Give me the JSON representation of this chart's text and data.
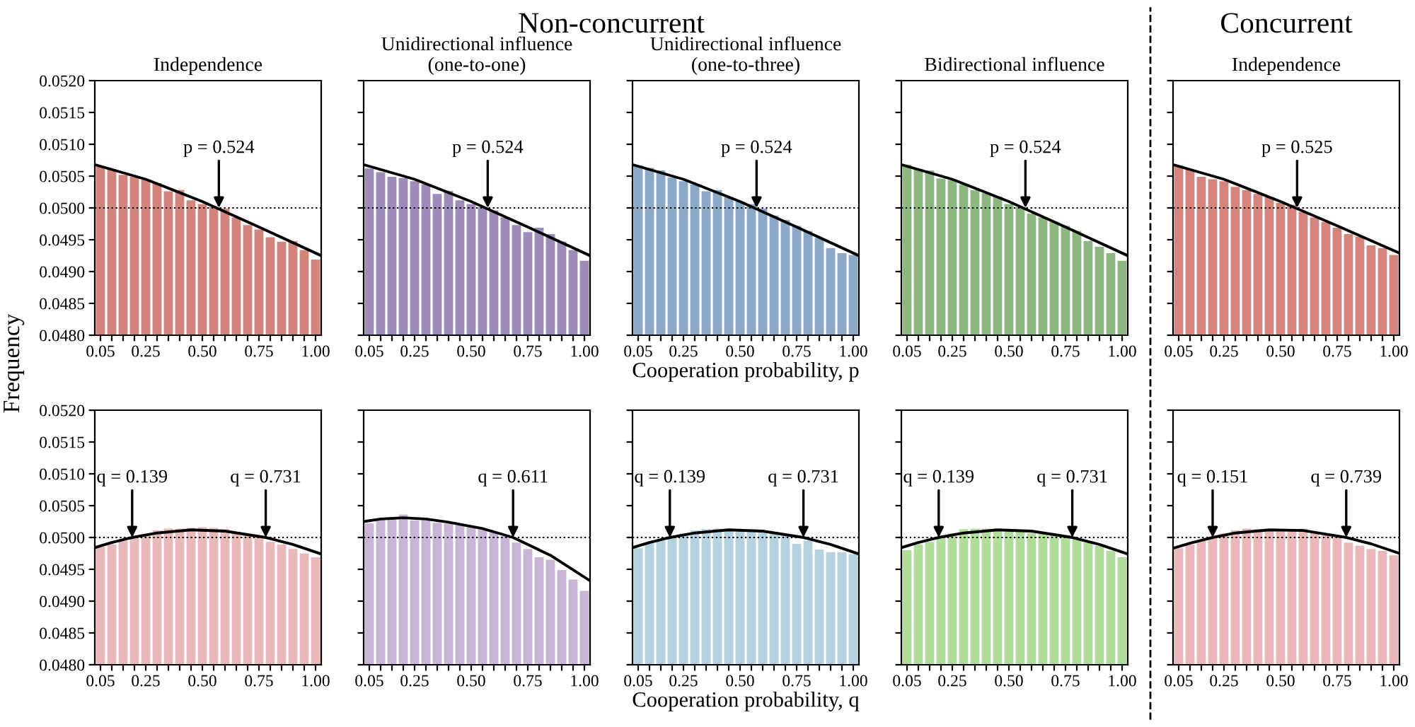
{
  "chart_data": [
    {
      "type": "bar",
      "title": "Independence",
      "ylabel": "Frequency",
      "annotations": [
        "Non-concurrent",
        {
          "text": "p = 0.524",
          "x": 0.573,
          "y": 0.05
        }
      ],
      "x": [
        0.05,
        0.1,
        0.15,
        0.2,
        0.25,
        0.3,
        0.35,
        0.4,
        0.45,
        0.5,
        0.55,
        0.6,
        0.65,
        0.7,
        0.75,
        0.8,
        0.85,
        0.9,
        0.95,
        1.0
      ],
      "series": [
        {
          "color": "#d2857c",
          "values": [
            0.05065,
            0.05061,
            0.05052,
            0.05049,
            0.05045,
            0.05039,
            0.05026,
            0.05028,
            0.05012,
            0.05006,
            0.05001,
            0.04999,
            0.04985,
            0.04973,
            0.04966,
            0.04954,
            0.04947,
            0.04948,
            0.04934,
            0.04919
          ]
        },
        {
          "type": "line",
          "color": "#000000",
          "x": [
            0.025,
            0.25,
            0.5,
            0.75,
            1.025
          ],
          "values": [
            0.05068,
            0.05045,
            0.0501,
            0.0497,
            0.04925
          ]
        }
      ],
      "xlim": [
        0.025,
        1.025
      ],
      "ylim": [
        0.048,
        0.052
      ],
      "xticks": [
        {
          "value": 0.05,
          "label": "0.05"
        },
        {
          "value": 0.1,
          "label": null
        },
        {
          "value": 0.15,
          "label": null
        },
        {
          "value": 0.2,
          "label": null
        },
        {
          "value": 0.25,
          "label": "0.25"
        },
        {
          "value": 0.3,
          "label": null
        },
        {
          "value": 0.35,
          "label": null
        },
        {
          "value": 0.4,
          "label": null
        },
        {
          "value": 0.45,
          "label": null
        },
        {
          "value": 0.5,
          "label": "0.50"
        },
        {
          "value": 0.55,
          "label": null
        },
        {
          "value": 0.6,
          "label": null
        },
        {
          "value": 0.65,
          "label": null
        },
        {
          "value": 0.7,
          "label": null
        },
        {
          "value": 0.75,
          "label": "0.75"
        },
        {
          "value": 0.8,
          "label": null
        },
        {
          "value": 0.85,
          "label": null
        },
        {
          "value": 0.9,
          "label": null
        },
        {
          "value": 0.95,
          "label": null
        },
        {
          "value": 1.0,
          "label": "1.00"
        }
      ],
      "yticks": [
        {
          "value": 0.048,
          "label": "0.0480"
        },
        {
          "value": 0.0485,
          "label": "0.0485"
        },
        {
          "value": 0.049,
          "label": "0.0490"
        },
        {
          "value": 0.0495,
          "label": "0.0495"
        },
        {
          "value": 0.05,
          "label": "0.0500"
        },
        {
          "value": 0.0505,
          "label": "0.0505"
        },
        {
          "value": 0.051,
          "label": "0.0510"
        },
        {
          "value": 0.0515,
          "label": "0.0515"
        },
        {
          "value": 0.052,
          "label": "0.0520"
        }
      ],
      "ref_lines": [
        {
          "axis": "y",
          "value": 0.05,
          "color": "#000000",
          "line_style": "dotted"
        }
      ],
      "grid": false
    },
    {
      "type": "bar",
      "title": "Unidirectional influence\n(one-to-one)",
      "annotations": [
        {
          "text": "p = 0.524",
          "x": 0.573,
          "y": 0.05
        }
      ],
      "x": [
        0.05,
        0.1,
        0.15,
        0.2,
        0.25,
        0.3,
        0.35,
        0.4,
        0.45,
        0.5,
        0.55,
        0.6,
        0.65,
        0.7,
        0.75,
        0.8,
        0.85,
        0.9,
        0.95,
        1.0
      ],
      "series": [
        {
          "color": "#9d8cba",
          "values": [
            0.05062,
            0.05056,
            0.05049,
            0.05047,
            0.05042,
            0.05037,
            0.05022,
            0.05027,
            0.05012,
            0.05006,
            0.05001,
            0.04996,
            0.04985,
            0.04973,
            0.04962,
            0.04969,
            0.04959,
            0.04947,
            0.04934,
            0.04917
          ]
        },
        {
          "type": "line",
          "color": "#000000",
          "x": [
            0.025,
            0.25,
            0.5,
            0.75,
            1.025
          ],
          "values": [
            0.05068,
            0.05045,
            0.0501,
            0.0497,
            0.04925
          ]
        }
      ],
      "xlim": [
        0.025,
        1.025
      ],
      "ylim": [
        0.048,
        0.052
      ],
      "xticks": [
        {
          "value": 0.05,
          "label": "0.05"
        },
        {
          "value": 0.1,
          "label": null
        },
        {
          "value": 0.15,
          "label": null
        },
        {
          "value": 0.2,
          "label": null
        },
        {
          "value": 0.25,
          "label": "0.25"
        },
        {
          "value": 0.3,
          "label": null
        },
        {
          "value": 0.35,
          "label": null
        },
        {
          "value": 0.4,
          "label": null
        },
        {
          "value": 0.45,
          "label": null
        },
        {
          "value": 0.5,
          "label": "0.50"
        },
        {
          "value": 0.55,
          "label": null
        },
        {
          "value": 0.6,
          "label": null
        },
        {
          "value": 0.65,
          "label": null
        },
        {
          "value": 0.7,
          "label": null
        },
        {
          "value": 0.75,
          "label": "0.75"
        },
        {
          "value": 0.8,
          "label": null
        },
        {
          "value": 0.85,
          "label": null
        },
        {
          "value": 0.9,
          "label": null
        },
        {
          "value": 0.95,
          "label": null
        },
        {
          "value": 1.0,
          "label": "1.00"
        }
      ],
      "yticks": [
        0.048,
        0.0485,
        0.049,
        0.0495,
        0.05,
        0.0505,
        0.051,
        0.0515,
        0.052
      ],
      "ref_lines": [
        {
          "axis": "y",
          "value": 0.05,
          "color": "#000000",
          "line_style": "dotted"
        }
      ],
      "grid": false,
      "tick_labels": "x"
    },
    {
      "type": "bar",
      "title": "Unidirectional influence\n(one-to-three)",
      "xlabel": "Cooperation probability, p",
      "annotations": [
        {
          "text": "p = 0.524",
          "x": 0.573,
          "y": 0.05
        }
      ],
      "x": [
        0.05,
        0.1,
        0.15,
        0.2,
        0.25,
        0.3,
        0.35,
        0.4,
        0.45,
        0.5,
        0.55,
        0.6,
        0.65,
        0.7,
        0.75,
        0.8,
        0.85,
        0.9,
        0.95,
        1.0
      ],
      "series": [
        {
          "color": "#8aa9c6",
          "values": [
            0.05067,
            0.05063,
            0.05059,
            0.05048,
            0.05042,
            0.05037,
            0.05026,
            0.05028,
            0.05017,
            0.0501,
            0.05006,
            0.04999,
            0.04988,
            0.04981,
            0.04972,
            0.04964,
            0.04953,
            0.04937,
            0.04929,
            0.04926
          ]
        },
        {
          "type": "line",
          "color": "#000000",
          "x": [
            0.025,
            0.25,
            0.5,
            0.75,
            1.025
          ],
          "values": [
            0.05068,
            0.05045,
            0.0501,
            0.0497,
            0.04925
          ]
        }
      ],
      "xlim": [
        0.025,
        1.025
      ],
      "ylim": [
        0.048,
        0.052
      ],
      "xticks": [
        {
          "value": 0.05,
          "label": "0.05"
        },
        {
          "value": 0.1,
          "label": null
        },
        {
          "value": 0.15,
          "label": null
        },
        {
          "value": 0.2,
          "label": null
        },
        {
          "value": 0.25,
          "label": "0.25"
        },
        {
          "value": 0.3,
          "label": null
        },
        {
          "value": 0.35,
          "label": null
        },
        {
          "value": 0.4,
          "label": null
        },
        {
          "value": 0.45,
          "label": null
        },
        {
          "value": 0.5,
          "label": "0.50"
        },
        {
          "value": 0.55,
          "label": null
        },
        {
          "value": 0.6,
          "label": null
        },
        {
          "value": 0.65,
          "label": null
        },
        {
          "value": 0.7,
          "label": null
        },
        {
          "value": 0.75,
          "label": "0.75"
        },
        {
          "value": 0.8,
          "label": null
        },
        {
          "value": 0.85,
          "label": null
        },
        {
          "value": 0.9,
          "label": null
        },
        {
          "value": 0.95,
          "label": null
        },
        {
          "value": 1.0,
          "label": "1.00"
        }
      ],
      "yticks": [
        0.048,
        0.0485,
        0.049,
        0.0495,
        0.05,
        0.0505,
        0.051,
        0.0515,
        0.052
      ],
      "ref_lines": [
        {
          "axis": "y",
          "value": 0.05,
          "color": "#000000",
          "line_style": "dotted"
        }
      ],
      "grid": false,
      "tick_labels": "x"
    },
    {
      "type": "bar",
      "title": "Bidirectional influence",
      "annotations": [
        {
          "text": "p = 0.524",
          "x": 0.573,
          "y": 0.05
        }
      ],
      "x": [
        0.05,
        0.1,
        0.15,
        0.2,
        0.25,
        0.3,
        0.35,
        0.4,
        0.45,
        0.5,
        0.55,
        0.6,
        0.65,
        0.7,
        0.75,
        0.8,
        0.85,
        0.9,
        0.95,
        1.0
      ],
      "series": [
        {
          "color": "#8ab87e",
          "values": [
            0.05068,
            0.05061,
            0.05059,
            0.05046,
            0.05044,
            0.05037,
            0.05028,
            0.05023,
            0.05018,
            0.05006,
            0.05001,
            0.04991,
            0.04985,
            0.04978,
            0.04972,
            0.04964,
            0.04948,
            0.04939,
            0.04929,
            0.04917
          ]
        },
        {
          "type": "line",
          "color": "#000000",
          "x": [
            0.025,
            0.25,
            0.5,
            0.75,
            1.025
          ],
          "values": [
            0.05068,
            0.05045,
            0.0501,
            0.0497,
            0.04925
          ]
        }
      ],
      "xlim": [
        0.025,
        1.025
      ],
      "ylim": [
        0.048,
        0.052
      ],
      "xticks": [
        {
          "value": 0.05,
          "label": "0.05"
        },
        {
          "value": 0.1,
          "label": null
        },
        {
          "value": 0.15,
          "label": null
        },
        {
          "value": 0.2,
          "label": null
        },
        {
          "value": 0.25,
          "label": "0.25"
        },
        {
          "value": 0.3,
          "label": null
        },
        {
          "value": 0.35,
          "label": null
        },
        {
          "value": 0.4,
          "label": null
        },
        {
          "value": 0.45,
          "label": null
        },
        {
          "value": 0.5,
          "label": "0.50"
        },
        {
          "value": 0.55,
          "label": null
        },
        {
          "value": 0.6,
          "label": null
        },
        {
          "value": 0.65,
          "label": null
        },
        {
          "value": 0.7,
          "label": null
        },
        {
          "value": 0.75,
          "label": "0.75"
        },
        {
          "value": 0.8,
          "label": null
        },
        {
          "value": 0.85,
          "label": null
        },
        {
          "value": 0.9,
          "label": null
        },
        {
          "value": 0.95,
          "label": null
        },
        {
          "value": 1.0,
          "label": "1.00"
        }
      ],
      "yticks": [
        0.048,
        0.0485,
        0.049,
        0.0495,
        0.05,
        0.0505,
        0.051,
        0.0515,
        0.052
      ],
      "ref_lines": [
        {
          "axis": "y",
          "value": 0.05,
          "color": "#000000",
          "line_style": "dotted"
        }
      ],
      "grid": false,
      "tick_labels": "x"
    },
    {
      "type": "bar",
      "title": "Independence",
      "annotations": [
        "Concurrent",
        {
          "text": "p = 0.525",
          "x": 0.573,
          "y": 0.05
        }
      ],
      "x": [
        0.05,
        0.1,
        0.15,
        0.2,
        0.25,
        0.3,
        0.35,
        0.4,
        0.45,
        0.5,
        0.55,
        0.6,
        0.65,
        0.7,
        0.75,
        0.8,
        0.85,
        0.9,
        0.95,
        1.0
      ],
      "series": [
        {
          "color": "#d4857c",
          "values": [
            0.05067,
            0.0506,
            0.05049,
            0.05045,
            0.05042,
            0.05033,
            0.05028,
            0.05022,
            0.05017,
            0.05008,
            0.05005,
            0.04994,
            0.04985,
            0.04978,
            0.04969,
            0.04959,
            0.04955,
            0.04941,
            0.04937,
            0.04926
          ]
        },
        {
          "type": "line",
          "color": "#000000",
          "x": [
            0.025,
            0.25,
            0.5,
            0.75,
            1.025
          ],
          "values": [
            0.05068,
            0.05045,
            0.0501,
            0.04972,
            0.04929
          ]
        }
      ],
      "xlim": [
        0.025,
        1.025
      ],
      "ylim": [
        0.048,
        0.052
      ],
      "xticks": [
        {
          "value": 0.05,
          "label": "0.05"
        },
        {
          "value": 0.1,
          "label": null
        },
        {
          "value": 0.15,
          "label": null
        },
        {
          "value": 0.2,
          "label": null
        },
        {
          "value": 0.25,
          "label": "0.25"
        },
        {
          "value": 0.3,
          "label": null
        },
        {
          "value": 0.35,
          "label": null
        },
        {
          "value": 0.4,
          "label": null
        },
        {
          "value": 0.45,
          "label": null
        },
        {
          "value": 0.5,
          "label": "0.50"
        },
        {
          "value": 0.55,
          "label": null
        },
        {
          "value": 0.6,
          "label": null
        },
        {
          "value": 0.65,
          "label": null
        },
        {
          "value": 0.7,
          "label": null
        },
        {
          "value": 0.75,
          "label": "0.75"
        },
        {
          "value": 0.8,
          "label": null
        },
        {
          "value": 0.85,
          "label": null
        },
        {
          "value": 0.9,
          "label": null
        },
        {
          "value": 0.95,
          "label": null
        },
        {
          "value": 1.0,
          "label": "1.00"
        }
      ],
      "yticks": [
        0.048,
        0.0485,
        0.049,
        0.0495,
        0.05,
        0.0505,
        0.051,
        0.0515,
        0.052
      ],
      "ref_lines": [
        {
          "axis": "y",
          "value": 0.05,
          "color": "#000000",
          "line_style": "dotted"
        }
      ],
      "grid": false,
      "tick_labels": "x"
    },
    {
      "type": "bar",
      "annotations": [
        {
          "text": "q = 0.139",
          "x": 0.19,
          "y": 0.05
        },
        {
          "text": "q = 0.731",
          "x": 0.78,
          "y": 0.05
        }
      ],
      "x": [
        0.05,
        0.1,
        0.15,
        0.2,
        0.25,
        0.3,
        0.35,
        0.4,
        0.45,
        0.5,
        0.55,
        0.6,
        0.65,
        0.7,
        0.75,
        0.8,
        0.85,
        0.9,
        0.95,
        1.0
      ],
      "series": [
        {
          "color": "#e9b8b8",
          "values": [
            0.04985,
            0.04989,
            0.04995,
            0.04999,
            0.05004,
            0.05011,
            0.05014,
            0.05014,
            0.05015,
            0.05016,
            0.05015,
            0.05013,
            0.05009,
            0.05004,
            0.05,
            0.04993,
            0.04989,
            0.04982,
            0.04975,
            0.04969
          ]
        },
        {
          "type": "line",
          "color": "#000000",
          "x": [
            0.025,
            0.1,
            0.19,
            0.3,
            0.45,
            0.6,
            0.78,
            0.9,
            1.025
          ],
          "values": [
            0.04984,
            0.04992,
            0.05,
            0.05007,
            0.05012,
            0.0501,
            0.05,
            0.04989,
            0.04974
          ]
        }
      ],
      "xlim": [
        0.025,
        1.025
      ],
      "ylim": [
        0.048,
        0.052
      ],
      "xticks": [
        {
          "value": 0.05,
          "label": "0.05"
        },
        {
          "value": 0.1,
          "label": null
        },
        {
          "value": 0.15,
          "label": null
        },
        {
          "value": 0.2,
          "label": null
        },
        {
          "value": 0.25,
          "label": "0.25"
        },
        {
          "value": 0.3,
          "label": null
        },
        {
          "value": 0.35,
          "label": null
        },
        {
          "value": 0.4,
          "label": null
        },
        {
          "value": 0.45,
          "label": null
        },
        {
          "value": 0.5,
          "label": "0.50"
        },
        {
          "value": 0.55,
          "label": null
        },
        {
          "value": 0.6,
          "label": null
        },
        {
          "value": 0.65,
          "label": null
        },
        {
          "value": 0.7,
          "label": null
        },
        {
          "value": 0.75,
          "label": "0.75"
        },
        {
          "value": 0.8,
          "label": null
        },
        {
          "value": 0.85,
          "label": null
        },
        {
          "value": 0.9,
          "label": null
        },
        {
          "value": 0.95,
          "label": null
        },
        {
          "value": 1.0,
          "label": "1.00"
        }
      ],
      "yticks": [
        {
          "value": 0.048,
          "label": "0.0480"
        },
        {
          "value": 0.0485,
          "label": "0.0485"
        },
        {
          "value": 0.049,
          "label": "0.0490"
        },
        {
          "value": 0.0495,
          "label": "0.0495"
        },
        {
          "value": 0.05,
          "label": "0.0500"
        },
        {
          "value": 0.0505,
          "label": "0.0505"
        },
        {
          "value": 0.051,
          "label": "0.0510"
        },
        {
          "value": 0.0515,
          "label": "0.0515"
        },
        {
          "value": 0.052,
          "label": "0.0520"
        }
      ],
      "ref_lines": [
        {
          "axis": "y",
          "value": 0.05,
          "color": "#000000",
          "line_style": "dotted"
        }
      ],
      "grid": false
    },
    {
      "type": "bar",
      "annotations": [
        {
          "text": "q = 0.611",
          "x": 0.685,
          "y": 0.05
        }
      ],
      "x": [
        0.05,
        0.1,
        0.15,
        0.2,
        0.25,
        0.3,
        0.35,
        0.4,
        0.45,
        0.5,
        0.55,
        0.6,
        0.65,
        0.7,
        0.75,
        0.8,
        0.85,
        0.9,
        0.95,
        1.0
      ],
      "series": [
        {
          "color": "#c9b6d6",
          "values": [
            0.05022,
            0.0503,
            0.05032,
            0.05036,
            0.05027,
            0.05027,
            0.05023,
            0.05022,
            0.0502,
            0.05018,
            0.05013,
            0.05008,
            0.05002,
            0.04992,
            0.04982,
            0.04969,
            0.04965,
            0.04949,
            0.04934,
            0.04916
          ]
        },
        {
          "type": "line",
          "color": "#000000",
          "x": [
            0.025,
            0.1,
            0.2,
            0.3,
            0.4,
            0.55,
            0.685,
            0.85,
            1.025
          ],
          "values": [
            0.05025,
            0.05029,
            0.05031,
            0.05029,
            0.05024,
            0.05014,
            0.05,
            0.04972,
            0.04932
          ]
        }
      ],
      "xlim": [
        0.025,
        1.025
      ],
      "ylim": [
        0.048,
        0.052
      ],
      "xticks": [
        {
          "value": 0.05,
          "label": "0.05"
        },
        {
          "value": 0.1,
          "label": null
        },
        {
          "value": 0.15,
          "label": null
        },
        {
          "value": 0.2,
          "label": null
        },
        {
          "value": 0.25,
          "label": "0.25"
        },
        {
          "value": 0.3,
          "label": null
        },
        {
          "value": 0.35,
          "label": null
        },
        {
          "value": 0.4,
          "label": null
        },
        {
          "value": 0.45,
          "label": null
        },
        {
          "value": 0.5,
          "label": "0.50"
        },
        {
          "value": 0.55,
          "label": null
        },
        {
          "value": 0.6,
          "label": null
        },
        {
          "value": 0.65,
          "label": null
        },
        {
          "value": 0.7,
          "label": null
        },
        {
          "value": 0.75,
          "label": "0.75"
        },
        {
          "value": 0.8,
          "label": null
        },
        {
          "value": 0.85,
          "label": null
        },
        {
          "value": 0.9,
          "label": null
        },
        {
          "value": 0.95,
          "label": null
        },
        {
          "value": 1.0,
          "label": "1.00"
        }
      ],
      "yticks": [
        0.048,
        0.0485,
        0.049,
        0.0495,
        0.05,
        0.0505,
        0.051,
        0.0515,
        0.052
      ],
      "ref_lines": [
        {
          "axis": "y",
          "value": 0.05,
          "color": "#000000",
          "line_style": "dotted"
        }
      ],
      "grid": false,
      "tick_labels": "x"
    },
    {
      "type": "bar",
      "xlabel": "Cooperation probability, q",
      "annotations": [
        {
          "text": "q = 0.139",
          "x": 0.19,
          "y": 0.05
        },
        {
          "text": "q = 0.731",
          "x": 0.78,
          "y": 0.05
        }
      ],
      "x": [
        0.05,
        0.1,
        0.15,
        0.2,
        0.25,
        0.3,
        0.35,
        0.4,
        0.45,
        0.5,
        0.55,
        0.6,
        0.65,
        0.7,
        0.75,
        0.8,
        0.85,
        0.9,
        0.95,
        1.0
      ],
      "series": [
        {
          "color": "#b6d2df",
          "values": [
            0.04983,
            0.04992,
            0.04995,
            0.05,
            0.05006,
            0.05011,
            0.05013,
            0.05014,
            0.05014,
            0.05013,
            0.05011,
            0.05009,
            0.05006,
            0.05004,
            0.0499,
            0.04995,
            0.04981,
            0.04977,
            0.04977,
            0.04974
          ]
        },
        {
          "type": "line",
          "color": "#000000",
          "x": [
            0.025,
            0.1,
            0.19,
            0.3,
            0.45,
            0.6,
            0.78,
            0.9,
            1.025
          ],
          "values": [
            0.04984,
            0.04992,
            0.05,
            0.05007,
            0.05012,
            0.0501,
            0.05,
            0.04989,
            0.04974
          ]
        }
      ],
      "xlim": [
        0.025,
        1.025
      ],
      "ylim": [
        0.048,
        0.052
      ],
      "xticks": [
        {
          "value": 0.05,
          "label": "0.05"
        },
        {
          "value": 0.1,
          "label": null
        },
        {
          "value": 0.15,
          "label": null
        },
        {
          "value": 0.2,
          "label": null
        },
        {
          "value": 0.25,
          "label": "0.25"
        },
        {
          "value": 0.3,
          "label": null
        },
        {
          "value": 0.35,
          "label": null
        },
        {
          "value": 0.4,
          "label": null
        },
        {
          "value": 0.45,
          "label": null
        },
        {
          "value": 0.5,
          "label": "0.50"
        },
        {
          "value": 0.55,
          "label": null
        },
        {
          "value": 0.6,
          "label": null
        },
        {
          "value": 0.65,
          "label": null
        },
        {
          "value": 0.7,
          "label": null
        },
        {
          "value": 0.75,
          "label": "0.75"
        },
        {
          "value": 0.8,
          "label": null
        },
        {
          "value": 0.85,
          "label": null
        },
        {
          "value": 0.9,
          "label": null
        },
        {
          "value": 0.95,
          "label": null
        },
        {
          "value": 1.0,
          "label": "1.00"
        }
      ],
      "yticks": [
        0.048,
        0.0485,
        0.049,
        0.0495,
        0.05,
        0.0505,
        0.051,
        0.0515,
        0.052
      ],
      "ref_lines": [
        {
          "axis": "y",
          "value": 0.05,
          "color": "#000000",
          "line_style": "dotted"
        }
      ],
      "grid": false,
      "tick_labels": "x"
    },
    {
      "type": "bar",
      "annotations": [
        {
          "text": "q = 0.139",
          "x": 0.19,
          "y": 0.05
        },
        {
          "text": "q = 0.731",
          "x": 0.78,
          "y": 0.05
        }
      ],
      "x": [
        0.05,
        0.1,
        0.15,
        0.2,
        0.25,
        0.3,
        0.35,
        0.4,
        0.45,
        0.5,
        0.55,
        0.6,
        0.65,
        0.7,
        0.75,
        0.8,
        0.85,
        0.9,
        0.95,
        1.0
      ],
      "series": [
        {
          "color": "#b0de9a",
          "values": [
            0.0498,
            0.04989,
            0.04993,
            0.05,
            0.05006,
            0.05013,
            0.05014,
            0.05014,
            0.05014,
            0.05011,
            0.05009,
            0.05007,
            0.05006,
            0.05004,
            0.05,
            0.04999,
            0.04992,
            0.04987,
            0.04979,
            0.04969
          ]
        },
        {
          "type": "line",
          "color": "#000000",
          "x": [
            0.025,
            0.1,
            0.19,
            0.3,
            0.45,
            0.6,
            0.78,
            0.9,
            1.025
          ],
          "values": [
            0.04984,
            0.04992,
            0.05,
            0.05007,
            0.05012,
            0.0501,
            0.05,
            0.04989,
            0.04974
          ]
        }
      ],
      "xlim": [
        0.025,
        1.025
      ],
      "ylim": [
        0.048,
        0.052
      ],
      "xticks": [
        {
          "value": 0.05,
          "label": "0.05"
        },
        {
          "value": 0.1,
          "label": null
        },
        {
          "value": 0.15,
          "label": null
        },
        {
          "value": 0.2,
          "label": null
        },
        {
          "value": 0.25,
          "label": "0.25"
        },
        {
          "value": 0.3,
          "label": null
        },
        {
          "value": 0.35,
          "label": null
        },
        {
          "value": 0.4,
          "label": null
        },
        {
          "value": 0.45,
          "label": null
        },
        {
          "value": 0.5,
          "label": "0.50"
        },
        {
          "value": 0.55,
          "label": null
        },
        {
          "value": 0.6,
          "label": null
        },
        {
          "value": 0.65,
          "label": null
        },
        {
          "value": 0.7,
          "label": null
        },
        {
          "value": 0.75,
          "label": "0.75"
        },
        {
          "value": 0.8,
          "label": null
        },
        {
          "value": 0.85,
          "label": null
        },
        {
          "value": 0.9,
          "label": null
        },
        {
          "value": 0.95,
          "label": null
        },
        {
          "value": 1.0,
          "label": "1.00"
        }
      ],
      "yticks": [
        0.048,
        0.0485,
        0.049,
        0.0495,
        0.05,
        0.0505,
        0.051,
        0.0515,
        0.052
      ],
      "ref_lines": [
        {
          "axis": "y",
          "value": 0.05,
          "color": "#000000",
          "line_style": "dotted"
        }
      ],
      "grid": false,
      "tick_labels": "x"
    },
    {
      "type": "bar",
      "annotations": [
        {
          "text": "q = 0.151",
          "x": 0.2,
          "y": 0.05
        },
        {
          "text": "q = 0.739",
          "x": 0.79,
          "y": 0.05
        }
      ],
      "x": [
        0.05,
        0.1,
        0.15,
        0.2,
        0.25,
        0.3,
        0.35,
        0.4,
        0.45,
        0.5,
        0.55,
        0.6,
        0.65,
        0.7,
        0.75,
        0.8,
        0.85,
        0.9,
        0.95,
        1.0
      ],
      "series": [
        {
          "color": "#e9b8b8",
          "values": [
            0.04983,
            0.04989,
            0.04995,
            0.05,
            0.05006,
            0.05011,
            0.05014,
            0.05013,
            0.05011,
            0.05011,
            0.05011,
            0.05014,
            0.05009,
            0.05004,
            0.05,
            0.04992,
            0.04987,
            0.04982,
            0.04979,
            0.04972
          ]
        },
        {
          "type": "line",
          "color": "#000000",
          "x": [
            0.025,
            0.1,
            0.2,
            0.3,
            0.45,
            0.6,
            0.79,
            0.9,
            1.025
          ],
          "values": [
            0.04983,
            0.04991,
            0.05,
            0.05007,
            0.05012,
            0.05011,
            0.05,
            0.0499,
            0.04975
          ]
        }
      ],
      "xlim": [
        0.025,
        1.025
      ],
      "ylim": [
        0.048,
        0.052
      ],
      "xticks": [
        {
          "value": 0.05,
          "label": "0.05"
        },
        {
          "value": 0.1,
          "label": null
        },
        {
          "value": 0.15,
          "label": null
        },
        {
          "value": 0.2,
          "label": null
        },
        {
          "value": 0.25,
          "label": "0.25"
        },
        {
          "value": 0.3,
          "label": null
        },
        {
          "value": 0.35,
          "label": null
        },
        {
          "value": 0.4,
          "label": null
        },
        {
          "value": 0.45,
          "label": null
        },
        {
          "value": 0.5,
          "label": "0.50"
        },
        {
          "value": 0.55,
          "label": null
        },
        {
          "value": 0.6,
          "label": null
        },
        {
          "value": 0.65,
          "label": null
        },
        {
          "value": 0.7,
          "label": null
        },
        {
          "value": 0.75,
          "label": "0.75"
        },
        {
          "value": 0.8,
          "label": null
        },
        {
          "value": 0.85,
          "label": null
        },
        {
          "value": 0.9,
          "label": null
        },
        {
          "value": 0.95,
          "label": null
        },
        {
          "value": 1.0,
          "label": "1.00"
        }
      ],
      "yticks": [
        0.048,
        0.0485,
        0.049,
        0.0495,
        0.05,
        0.0505,
        0.051,
        0.0515,
        0.052
      ],
      "ref_lines": [
        {
          "axis": "y",
          "value": 0.05,
          "color": "#000000",
          "line_style": "dotted"
        }
      ],
      "grid": false,
      "tick_labels": "x"
    }
  ]
}
